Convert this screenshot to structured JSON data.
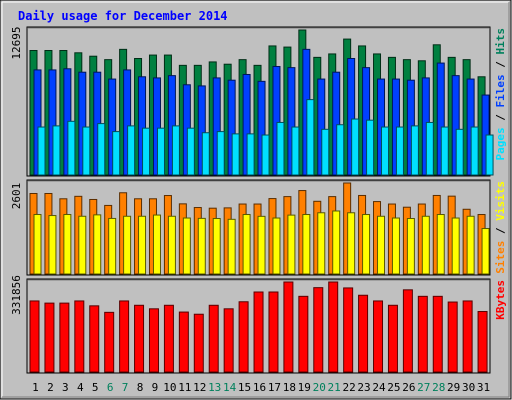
{
  "chart_data": {
    "type": "bar",
    "title": "Daily usage for December 2014",
    "days": [
      "1",
      "2",
      "3",
      "4",
      "5",
      "6",
      "7",
      "8",
      "9",
      "10",
      "11",
      "12",
      "13",
      "14",
      "15",
      "16",
      "17",
      "18",
      "19",
      "20",
      "21",
      "22",
      "23",
      "24",
      "25",
      "26",
      "27",
      "28",
      "29",
      "30",
      "31"
    ],
    "weekend_days": [
      "6",
      "7",
      "13",
      "14",
      "20",
      "21",
      "27",
      "28"
    ],
    "panels": [
      {
        "name": "hits",
        "max_label": "12695",
        "ylim": [
          0,
          12695
        ],
        "legend": [
          {
            "text": "Pages",
            "color": "#00e0ff"
          },
          {
            "text": "Files",
            "color": "#0040ff"
          },
          {
            "text": "Hits",
            "color": "#00805c"
          }
        ],
        "series": [
          {
            "name": "Hits",
            "color": "#008040",
            "values": [
              10900,
              10900,
              10900,
              10700,
              10400,
              10100,
              11000,
              10200,
              10500,
              10500,
              9600,
              9600,
              9900,
              9700,
              10100,
              9600,
              11300,
              11200,
              12695,
              10300,
              10600,
              11900,
              11300,
              10600,
              10300,
              10100,
              10000,
              11400,
              10300,
              10100,
              8600
            ]
          },
          {
            "name": "Files",
            "color": "#0040ff",
            "values": [
              9200,
              9200,
              9300,
              9000,
              9000,
              8400,
              9200,
              8600,
              8500,
              8700,
              7900,
              7800,
              8500,
              8300,
              8800,
              8200,
              9500,
              9400,
              11000,
              8400,
              9000,
              10200,
              9400,
              8400,
              8400,
              8300,
              8500,
              9800,
              8700,
              8400,
              7000
            ]
          },
          {
            "name": "Pages",
            "color": "#00e0ff",
            "values": [
              4200,
              4300,
              4700,
              4200,
              4500,
              3800,
              4300,
              4100,
              4100,
              4300,
              4100,
              3700,
              3800,
              3600,
              3600,
              3500,
              4600,
              4200,
              6600,
              4000,
              4400,
              4900,
              4800,
              4200,
              4200,
              4300,
              4600,
              4200,
              4000,
              4200,
              3500
            ]
          }
        ]
      },
      {
        "name": "visits",
        "max_label": "2601",
        "ylim": [
          0,
          2601
        ],
        "legend": [
          {
            "text": "Sites",
            "color": "#ff8000"
          },
          {
            "text": "Visits",
            "color": "#ffff00"
          }
        ],
        "series": [
          {
            "name": "Sites",
            "color": "#ff8000",
            "values": [
              2301,
              2301,
              2150,
              2220,
              2130,
              1960,
              2322,
              2150,
              2150,
              2243,
              2005,
              1900,
              1881,
              1890,
              2000,
              2000,
              2156,
              2212,
              2385,
              2078,
              2212,
              2601,
              2245,
              2070,
              2000,
              1909,
              2000,
              2245,
              2225,
              1850,
              1700
            ]
          },
          {
            "name": "Visits",
            "color": "#ffff00",
            "values": [
              1700,
              1671,
              1700,
              1650,
              1690,
              1588,
              1650,
              1650,
              1685,
              1650,
              1600,
              1590,
              1586,
              1563,
              1700,
              1648,
              1600,
              1683,
              1700,
              1750,
              1801,
              1750,
              1700,
              1650,
              1600,
              1586,
              1650,
              1700,
              1600,
              1650,
              1300
            ]
          }
        ]
      },
      {
        "name": "kbytes",
        "max_label": "331856",
        "ylim": [
          0,
          331856
        ],
        "legend": [
          {
            "text": "KBytes",
            "color": "#ff0000"
          }
        ],
        "series": [
          {
            "name": "KBytes",
            "color": "#ff0000",
            "values": [
              262000,
              254000,
              254000,
              262000,
              244000,
              220000,
              262000,
              246000,
              233000,
              246000,
              221000,
              213000,
              246000,
              233000,
              259000,
              295000,
              295000,
              331856,
              279000,
              311000,
              331856,
              310000,
              283000,
              262000,
              246000,
              303000,
              279000,
              279000,
              258000,
              262000,
              223000
            ]
          }
        ]
      }
    ]
  }
}
